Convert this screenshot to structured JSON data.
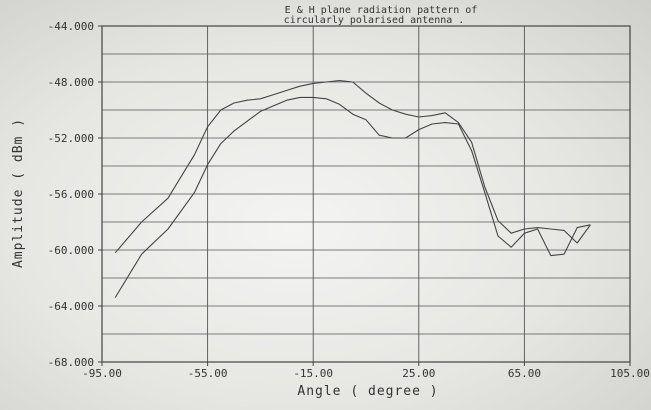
{
  "chart_data": {
    "type": "line",
    "title_lines": [
      "E & H plane radiation pattern of",
      "circularly polarised antenna ."
    ],
    "xlabel": "Angle ( degree )",
    "ylabel": "Amplitude ( dBm )",
    "xlim": [
      -95,
      105
    ],
    "ylim": [
      -68,
      -44
    ],
    "x_ticks": [
      -95,
      -55,
      -15,
      25,
      65,
      105
    ],
    "x_tick_labels": [
      "-95.00",
      "-55.00",
      "-15.00",
      "25.00",
      "65.00",
      "105.00"
    ],
    "y_ticks": [
      -44,
      -48,
      -52,
      -56,
      -60,
      -64,
      -68
    ],
    "y_tick_labels": [
      "-44.000",
      "-48.000",
      "-52.000",
      "-56.000",
      "-60.000",
      "-64.000",
      "-68.000"
    ],
    "grid": true,
    "colors": {
      "line": "#444444",
      "grid": "#555555",
      "text": "#333333"
    },
    "series": [
      {
        "x": [
          -90,
          -80,
          -70,
          -60,
          -55,
          -50,
          -45,
          -40,
          -35,
          -30,
          -25,
          -20,
          -15,
          -10,
          -5,
          0,
          5,
          10,
          15,
          20,
          25,
          30,
          35,
          40,
          45,
          50,
          55,
          60,
          65,
          70,
          75,
          80,
          85,
          90
        ],
        "y": [
          -60.2,
          -58.0,
          -56.3,
          -53.2,
          -51.2,
          -50.0,
          -49.5,
          -49.3,
          -49.2,
          -48.9,
          -48.6,
          -48.3,
          -48.1,
          -48.0,
          -47.9,
          -48.0,
          -48.8,
          -49.5,
          -50.0,
          -50.3,
          -50.5,
          -50.4,
          -50.2,
          -50.9,
          -52.3,
          -55.5,
          -57.9,
          -58.8,
          -58.5,
          -58.4,
          -58.5,
          -58.6,
          -59.5,
          -58.2
        ]
      },
      {
        "x": [
          -90,
          -80,
          -70,
          -60,
          -55,
          -50,
          -45,
          -40,
          -35,
          -30,
          -25,
          -20,
          -15,
          -10,
          -5,
          0,
          5,
          10,
          15,
          20,
          25,
          30,
          35,
          40,
          45,
          50,
          55,
          60,
          65,
          70,
          75,
          80,
          85,
          90
        ],
        "y": [
          -63.4,
          -60.3,
          -58.5,
          -55.9,
          -53.9,
          -52.4,
          -51.5,
          -50.8,
          -50.1,
          -49.7,
          -49.3,
          -49.1,
          -49.1,
          -49.2,
          -49.6,
          -50.3,
          -50.7,
          -51.8,
          -52.0,
          -52.0,
          -51.4,
          -51.0,
          -50.9,
          -51.0,
          -52.9,
          -55.9,
          -59.0,
          -59.8,
          -58.8,
          -58.5,
          -60.4,
          -60.3,
          -58.4,
          -58.2
        ]
      }
    ]
  }
}
